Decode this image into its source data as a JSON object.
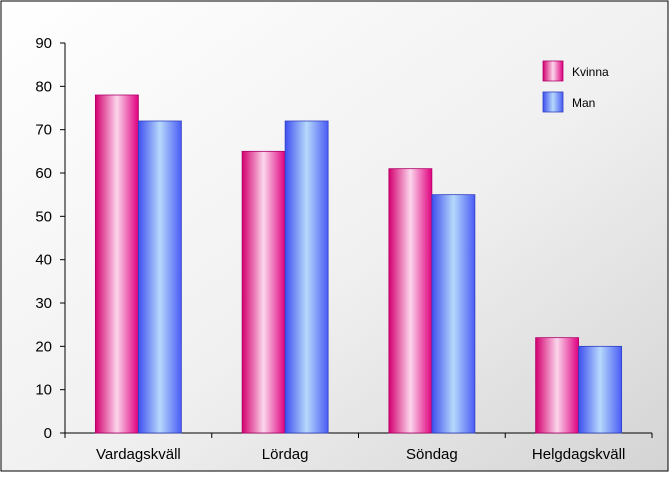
{
  "chart_data": {
    "type": "bar",
    "title": "",
    "xlabel": "",
    "ylabel": "",
    "categories": [
      "Vardagskväll",
      "Lördag",
      "Söndag",
      "Helgdagskväll"
    ],
    "series": [
      {
        "name": "Kvinna",
        "values": [
          78,
          65,
          61,
          22
        ],
        "color": "#e0007f"
      },
      {
        "name": "Man",
        "values": [
          72,
          72,
          55,
          20
        ],
        "color": "#4a5cf5"
      }
    ],
    "ylim": [
      0,
      90
    ],
    "yticks": [
      0,
      10,
      20,
      30,
      40,
      50,
      60,
      70,
      80,
      90
    ],
    "grid": false,
    "legend_position": "top-right"
  }
}
